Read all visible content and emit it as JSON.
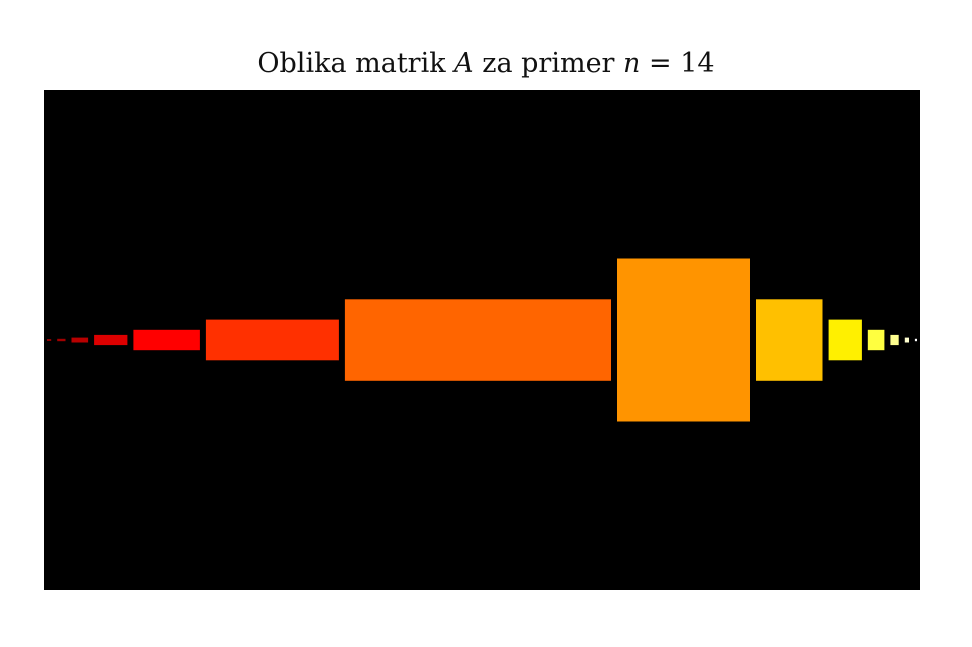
{
  "title": {
    "prefix": "Oblika matrik ",
    "var_a": "A",
    "middle": " za primer ",
    "var_n": "n",
    "suffix": " = 14"
  },
  "figure": {
    "background": "#000000",
    "blocks": [
      {
        "name": "block-1",
        "width": 1,
        "height": 0.3,
        "color": "#8b0000"
      },
      {
        "name": "block-2",
        "width": 2,
        "height": 0.6,
        "color": "#a00000"
      },
      {
        "name": "block-3",
        "width": 4,
        "height": 1.2,
        "color": "#b80000"
      },
      {
        "name": "block-4",
        "width": 8,
        "height": 2.5,
        "color": "#dd0000"
      },
      {
        "name": "block-5",
        "width": 16,
        "height": 5,
        "color": "#ff0000"
      },
      {
        "name": "block-6",
        "width": 32,
        "height": 10,
        "color": "#ff3000"
      },
      {
        "name": "block-7",
        "width": 64,
        "height": 20,
        "color": "#ff6500"
      },
      {
        "name": "block-8",
        "width": 32,
        "height": 40,
        "color": "#ff9400"
      },
      {
        "name": "block-9",
        "width": 16,
        "height": 20,
        "color": "#ffc000"
      },
      {
        "name": "block-10",
        "width": 8,
        "height": 10,
        "color": "#fff000"
      },
      {
        "name": "block-11",
        "width": 4,
        "height": 5,
        "color": "#ffff40"
      },
      {
        "name": "block-12",
        "width": 2,
        "height": 2.5,
        "color": "#ffff90"
      },
      {
        "name": "block-13",
        "width": 1,
        "height": 1.2,
        "color": "#ffffd0"
      },
      {
        "name": "block-14",
        "width": 0.5,
        "height": 0.6,
        "color": "#ffffff"
      }
    ]
  }
}
